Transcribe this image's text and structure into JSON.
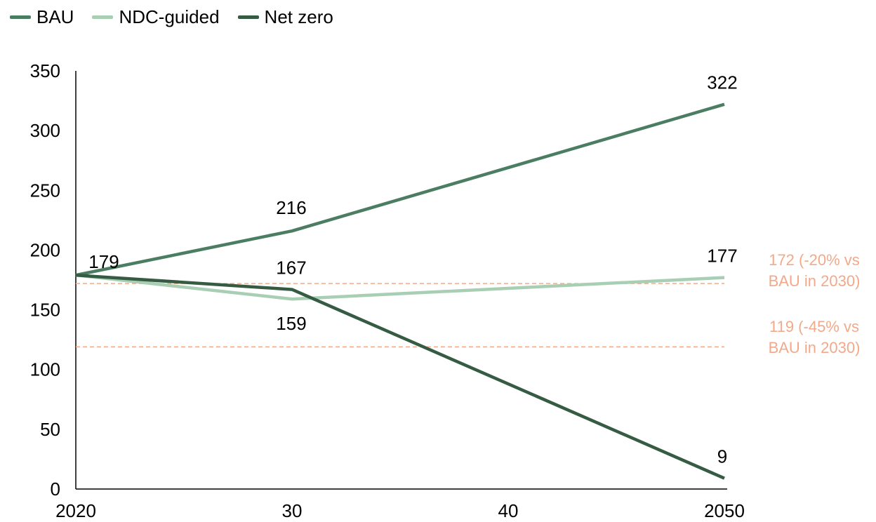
{
  "legend": [
    {
      "name": "BAU",
      "color": "#4a7d61"
    },
    {
      "name": "NDC-guided",
      "color": "#a8cfb3"
    },
    {
      "name": "Net zero",
      "color": "#355b42"
    }
  ],
  "chart_data": {
    "type": "line",
    "x": [
      2020,
      2030,
      2040,
      2050
    ],
    "x_tick_labels": [
      "2020",
      "30",
      "40",
      "2050"
    ],
    "ylim": [
      0,
      350
    ],
    "y_ticks": [
      0,
      50,
      100,
      150,
      200,
      250,
      300,
      350
    ],
    "grid": false,
    "legend_position": "top-left",
    "series": [
      {
        "name": "BAU",
        "color": "#4a7d61",
        "x": [
          2020,
          2030,
          2050
        ],
        "values": [
          179,
          216,
          322
        ],
        "labels": [
          {
            "x": 2030,
            "text": "216"
          },
          {
            "x": 2050,
            "text": "322"
          }
        ]
      },
      {
        "name": "NDC-guided",
        "color": "#a8cfb3",
        "x": [
          2020,
          2030,
          2050
        ],
        "values": [
          179,
          159,
          177
        ],
        "labels": [
          {
            "x": 2030,
            "text": "159"
          },
          {
            "x": 2050,
            "text": "177"
          }
        ]
      },
      {
        "name": "Net zero",
        "color": "#355b42",
        "x": [
          2020,
          2030,
          2050
        ],
        "values": [
          179,
          167,
          9
        ],
        "labels": [
          {
            "x": 2020,
            "text": "179"
          },
          {
            "x": 2030,
            "text": "167"
          },
          {
            "x": 2050,
            "text": "9"
          }
        ]
      }
    ],
    "reference_lines": [
      {
        "value": 172,
        "label_lines": [
          "172 (-20% vs",
          "BAU in 2030)"
        ],
        "color": "#f2a98a"
      },
      {
        "value": 119,
        "label_lines": [
          "119 (-45% vs",
          "BAU in 2030)"
        ],
        "color": "#f2a98a"
      }
    ]
  }
}
